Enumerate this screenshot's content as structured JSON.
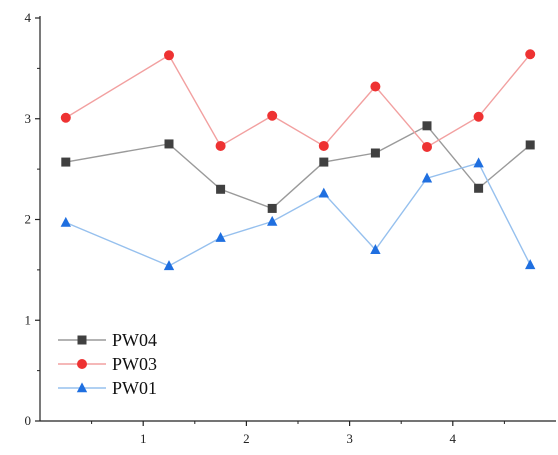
{
  "chart_data": {
    "type": "line",
    "title": "",
    "xlabel": "",
    "ylabel": "",
    "xlim": [
      0,
      5
    ],
    "ylim": [
      0,
      4
    ],
    "x_ticks": [
      1,
      2,
      3,
      4
    ],
    "y_ticks": [
      0,
      1,
      2,
      3,
      4
    ],
    "x_tick_labels": [
      "1",
      "2",
      "3",
      "4"
    ],
    "y_tick_labels": [
      "0",
      "1",
      "2",
      "3",
      "4"
    ],
    "grid": false,
    "legend_position": "bottom-left",
    "x": [
      0.25,
      1.25,
      1.75,
      2.25,
      2.75,
      3.25,
      3.75,
      4.25,
      4.75
    ],
    "series": [
      {
        "name": "PW04",
        "marker": "square",
        "line_color": "#9a9a9a",
        "marker_color": "#404040",
        "values": [
          2.57,
          2.75,
          2.3,
          2.11,
          2.57,
          2.66,
          2.93,
          2.31,
          2.74
        ]
      },
      {
        "name": "PW03",
        "marker": "circle",
        "line_color": "#f2a0a0",
        "marker_color": "#ee3232",
        "values": [
          3.01,
          3.63,
          2.73,
          3.03,
          2.73,
          3.32,
          2.72,
          3.02,
          3.64
        ]
      },
      {
        "name": "PW01",
        "marker": "triangle",
        "line_color": "#96c0ee",
        "marker_color": "#1f6fe0",
        "values": [
          1.97,
          1.54,
          1.82,
          1.98,
          2.26,
          1.7,
          2.41,
          2.56,
          1.55
        ]
      }
    ]
  }
}
